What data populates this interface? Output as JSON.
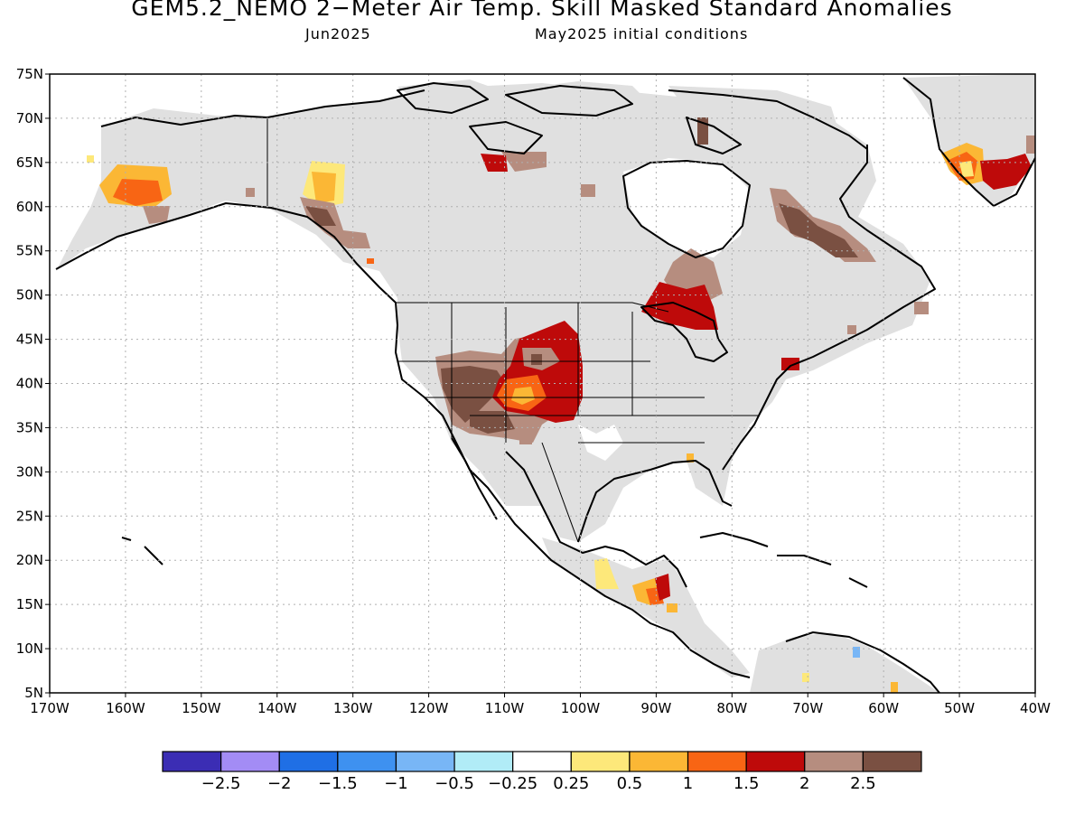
{
  "title": "GEM5.2_NEMO 2−Meter Air Temp. Skill Masked Standard Anomalies",
  "subtitle_left": "Jun2025",
  "subtitle_right": "May2025 initial conditions",
  "lat_labels": [
    "75N",
    "70N",
    "65N",
    "60N",
    "55N",
    "50N",
    "45N",
    "40N",
    "35N",
    "30N",
    "25N",
    "20N",
    "15N",
    "10N",
    "5N"
  ],
  "lon_labels": [
    "170W",
    "160W",
    "150W",
    "140W",
    "130W",
    "120W",
    "110W",
    "100W",
    "90W",
    "80W",
    "70W",
    "60W",
    "50W",
    "40W"
  ],
  "colorbar": {
    "colors": [
      "#3b2db4",
      "#a38cf5",
      "#1f6fe5",
      "#3e91f0",
      "#78b6f6",
      "#b1ecf7",
      "#ffffff",
      "#fde87a",
      "#fbb735",
      "#f86514",
      "#be0a0a",
      "#b68d7f",
      "#7a5042"
    ],
    "labels": [
      "−2.5",
      "−2",
      "−1.5",
      "−1",
      "−0.5",
      "−0.25",
      "0.25",
      "0.5",
      "1",
      "1.5",
      "2",
      "2.5"
    ]
  },
  "colors": {
    "masked_land": "#e0e0e0",
    "grid": "#b0b0b0",
    "coast": "#000000"
  }
}
